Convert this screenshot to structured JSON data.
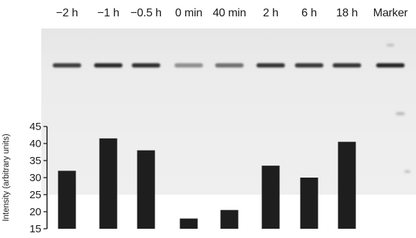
{
  "lanes": [
    {
      "label": "−2 h",
      "band_intensity": 0.85
    },
    {
      "label": "−1 h",
      "band_intensity": 0.95
    },
    {
      "label": "−0.5 h",
      "band_intensity": 0.92
    },
    {
      "label": "0 min",
      "band_intensity": 0.45
    },
    {
      "label": "40 min",
      "band_intensity": 0.6
    },
    {
      "label": "2 h",
      "band_intensity": 0.9
    },
    {
      "label": "6 h",
      "band_intensity": 0.88
    },
    {
      "label": "18 h",
      "band_intensity": 0.9
    },
    {
      "label": "Marker",
      "band_intensity": 0.97
    }
  ],
  "chart_data": {
    "type": "bar",
    "categories": [
      "−2 h",
      "−1 h",
      "−0.5 h",
      "0 min",
      "40 min",
      "2 h",
      "6 h",
      "18 h"
    ],
    "values": [
      32,
      41.5,
      38,
      18,
      20.5,
      33.5,
      30,
      40.5
    ],
    "title": "",
    "xlabel": "",
    "ylabel": "Intensity (arbitrary units)",
    "ylim": [
      15,
      45
    ],
    "yticks": [
      15,
      20,
      25,
      30,
      35,
      40,
      45
    ],
    "grid": false,
    "bar_color": "#1e1e1e"
  }
}
